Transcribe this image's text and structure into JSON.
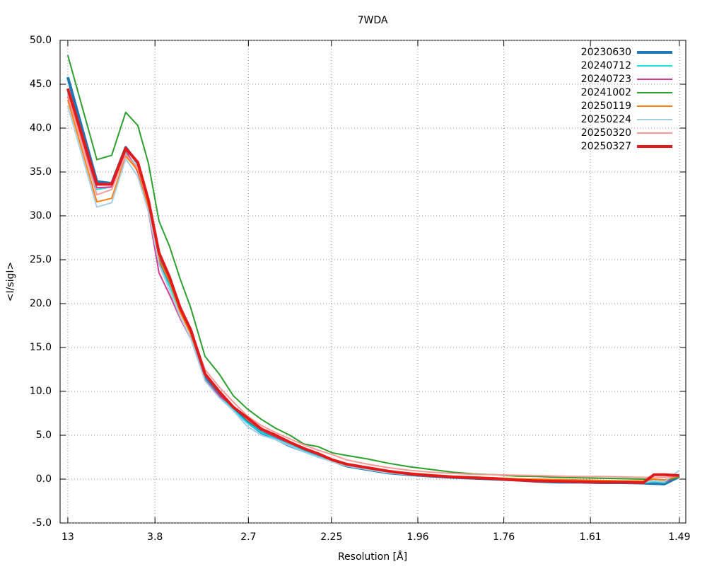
{
  "chart_data": {
    "type": "line",
    "title": "7WDA",
    "x_label": "Resolution [Å]",
    "y_label": "<I/sigI>",
    "x": [
      0.0059,
      0.027,
      0.0378,
      0.048,
      0.0568,
      0.0645,
      0.0722,
      0.0799,
      0.0876,
      0.0953,
      0.1056,
      0.1159,
      0.1262,
      0.1364,
      0.1467,
      0.157,
      0.1673,
      0.1775,
      0.1878,
      0.1981,
      0.2084,
      0.2238,
      0.2392,
      0.2546,
      0.27,
      0.2855,
      0.3009,
      0.3163,
      0.3317,
      0.3471,
      0.3626,
      0.378,
      0.3934,
      0.4088,
      0.4242,
      0.4319,
      0.4396,
      0.4504
    ],
    "xlim": [
      0.0003,
      0.4551
    ],
    "xticks": [
      {
        "value": 0.00592,
        "label": "13"
      },
      {
        "value": 0.06925,
        "label": "3.8"
      },
      {
        "value": 0.13717,
        "label": "2.7"
      },
      {
        "value": 0.19753,
        "label": "2.25"
      },
      {
        "value": 0.26031,
        "label": "1.96"
      },
      {
        "value": 0.32283,
        "label": "1.76"
      },
      {
        "value": 0.38579,
        "label": "1.61"
      },
      {
        "value": 0.45043,
        "label": "1.49"
      }
    ],
    "ylim": [
      -5,
      50
    ],
    "yticks": [
      {
        "value": -5,
        "label": "-5.0"
      },
      {
        "value": 0,
        "label": "0.0"
      },
      {
        "value": 5,
        "label": "5.0"
      },
      {
        "value": 10,
        "label": "10.0"
      },
      {
        "value": 15,
        "label": "15.0"
      },
      {
        "value": 20,
        "label": "20.0"
      },
      {
        "value": 25,
        "label": "25.0"
      },
      {
        "value": 30,
        "label": "30.0"
      },
      {
        "value": 35,
        "label": "35.0"
      },
      {
        "value": 40,
        "label": "40.0"
      },
      {
        "value": 45,
        "label": "45.0"
      },
      {
        "value": 50,
        "label": "50.0"
      }
    ],
    "grid": true,
    "legend": "top-right",
    "series": [
      {
        "name": "20230630",
        "color": "#1f77b4",
        "line_width": 4,
        "values": [
          45.8,
          33.9,
          33.7,
          37.8,
          36.0,
          31.5,
          25.0,
          22.5,
          19.3,
          16.7,
          11.5,
          9.6,
          8.0,
          6.5,
          5.3,
          4.6,
          3.8,
          3.2,
          2.6,
          2.1,
          1.5,
          1.1,
          0.7,
          0.5,
          0.35,
          0.2,
          0.1,
          0,
          -0.1,
          -0.25,
          -0.35,
          -0.35,
          -0.4,
          -0.4,
          -0.45,
          -0.5,
          -0.55,
          0.3
        ]
      },
      {
        "name": "20240712",
        "color": "#17e0e0",
        "line_width": 2,
        "values": [
          44.0,
          33.0,
          33.3,
          37.2,
          35.5,
          31.0,
          24.5,
          22.0,
          19.0,
          16.5,
          11.4,
          9.5,
          7.9,
          6.4,
          5.3,
          4.6,
          3.9,
          3.2,
          2.6,
          2.0,
          1.5,
          1.1,
          0.7,
          0.5,
          0.35,
          0.2,
          0.1,
          0,
          -0.1,
          -0.2,
          -0.3,
          -0.3,
          -0.3,
          -0.35,
          -0.4,
          -0.3,
          -0.4,
          0.5
        ]
      },
      {
        "name": "20240723",
        "color": "#d63a8e",
        "line_width": 2,
        "values": [
          43.6,
          33.2,
          33.3,
          37.5,
          35.0,
          30.5,
          23.5,
          21.0,
          18.3,
          16.0,
          11.3,
          9.5,
          8.3,
          6.8,
          5.6,
          4.8,
          4.1,
          3.4,
          2.8,
          2.1,
          1.6,
          1.2,
          0.8,
          0.6,
          0.45,
          0.3,
          0.2,
          0.1,
          0,
          -0.1,
          -0.15,
          -0.2,
          -0.2,
          -0.25,
          -0.3,
          -0.2,
          -0.3,
          0.3
        ]
      },
      {
        "name": "20241002",
        "color": "#2ca02c",
        "line_width": 2,
        "values": [
          48.3,
          36.4,
          36.9,
          41.8,
          40.3,
          36.0,
          29.4,
          26.5,
          22.8,
          19.5,
          14.0,
          12.0,
          9.5,
          8.0,
          6.8,
          5.8,
          5.0,
          4.0,
          3.7,
          3.0,
          2.7,
          2.3,
          1.8,
          1.4,
          1.1,
          0.8,
          0.6,
          0.5,
          0.35,
          0.3,
          0.2,
          0.15,
          0.1,
          0.05,
          0,
          0,
          -0.1,
          0.2
        ]
      },
      {
        "name": "20250119",
        "color": "#ff7f0e",
        "line_width": 2,
        "values": [
          43.2,
          31.6,
          32.0,
          36.8,
          35.2,
          31.0,
          25.0,
          22.5,
          19.0,
          16.5,
          12.0,
          10.0,
          8.3,
          6.8,
          5.6,
          4.9,
          4.2,
          3.5,
          2.9,
          2.3,
          1.8,
          1.3,
          0.9,
          0.7,
          0.5,
          0.35,
          0.25,
          0.15,
          0.05,
          0,
          -0.05,
          -0.1,
          -0.15,
          -0.2,
          -0.2,
          0,
          -0.1,
          0.4
        ]
      },
      {
        "name": "20250224",
        "color": "#a6cee3",
        "line_width": 2,
        "values": [
          42.5,
          31.0,
          31.5,
          36.5,
          34.5,
          30.5,
          24.5,
          21.5,
          18.5,
          16.0,
          11.2,
          9.3,
          7.8,
          6.0,
          5.0,
          4.5,
          3.8,
          3.1,
          2.5,
          2.0,
          1.5,
          1.1,
          0.7,
          0.5,
          0.35,
          0.2,
          0.1,
          0,
          -0.1,
          -0.2,
          -0.3,
          -0.3,
          -0.3,
          -0.3,
          -0.35,
          -0.2,
          -0.3,
          1.0
        ]
      },
      {
        "name": "20250320",
        "color": "#fb9a99",
        "line_width": 2,
        "values": [
          43.8,
          32.4,
          33.0,
          37.0,
          35.5,
          31.5,
          25.5,
          23.0,
          19.8,
          17.0,
          12.5,
          10.5,
          8.8,
          7.2,
          6.1,
          5.3,
          4.6,
          3.9,
          3.3,
          2.8,
          2.2,
          1.7,
          1.3,
          1.0,
          0.8,
          0.65,
          0.55,
          0.5,
          0.45,
          0.4,
          0.35,
          0.3,
          0.3,
          0.25,
          0.2,
          0.2,
          0.2,
          0.3
        ]
      },
      {
        "name": "20250327",
        "color": "#e31a1c",
        "line_width": 4,
        "values": [
          44.5,
          33.6,
          33.6,
          37.7,
          36.1,
          31.8,
          25.8,
          23.0,
          19.5,
          17.0,
          12.0,
          10.0,
          8.2,
          7.0,
          5.7,
          5.0,
          4.2,
          3.5,
          2.9,
          2.2,
          1.7,
          1.3,
          0.9,
          0.6,
          0.4,
          0.25,
          0.15,
          0.05,
          -0.1,
          -0.2,
          -0.25,
          -0.3,
          -0.35,
          -0.35,
          -0.4,
          0.5,
          0.5,
          0.4
        ]
      }
    ]
  }
}
